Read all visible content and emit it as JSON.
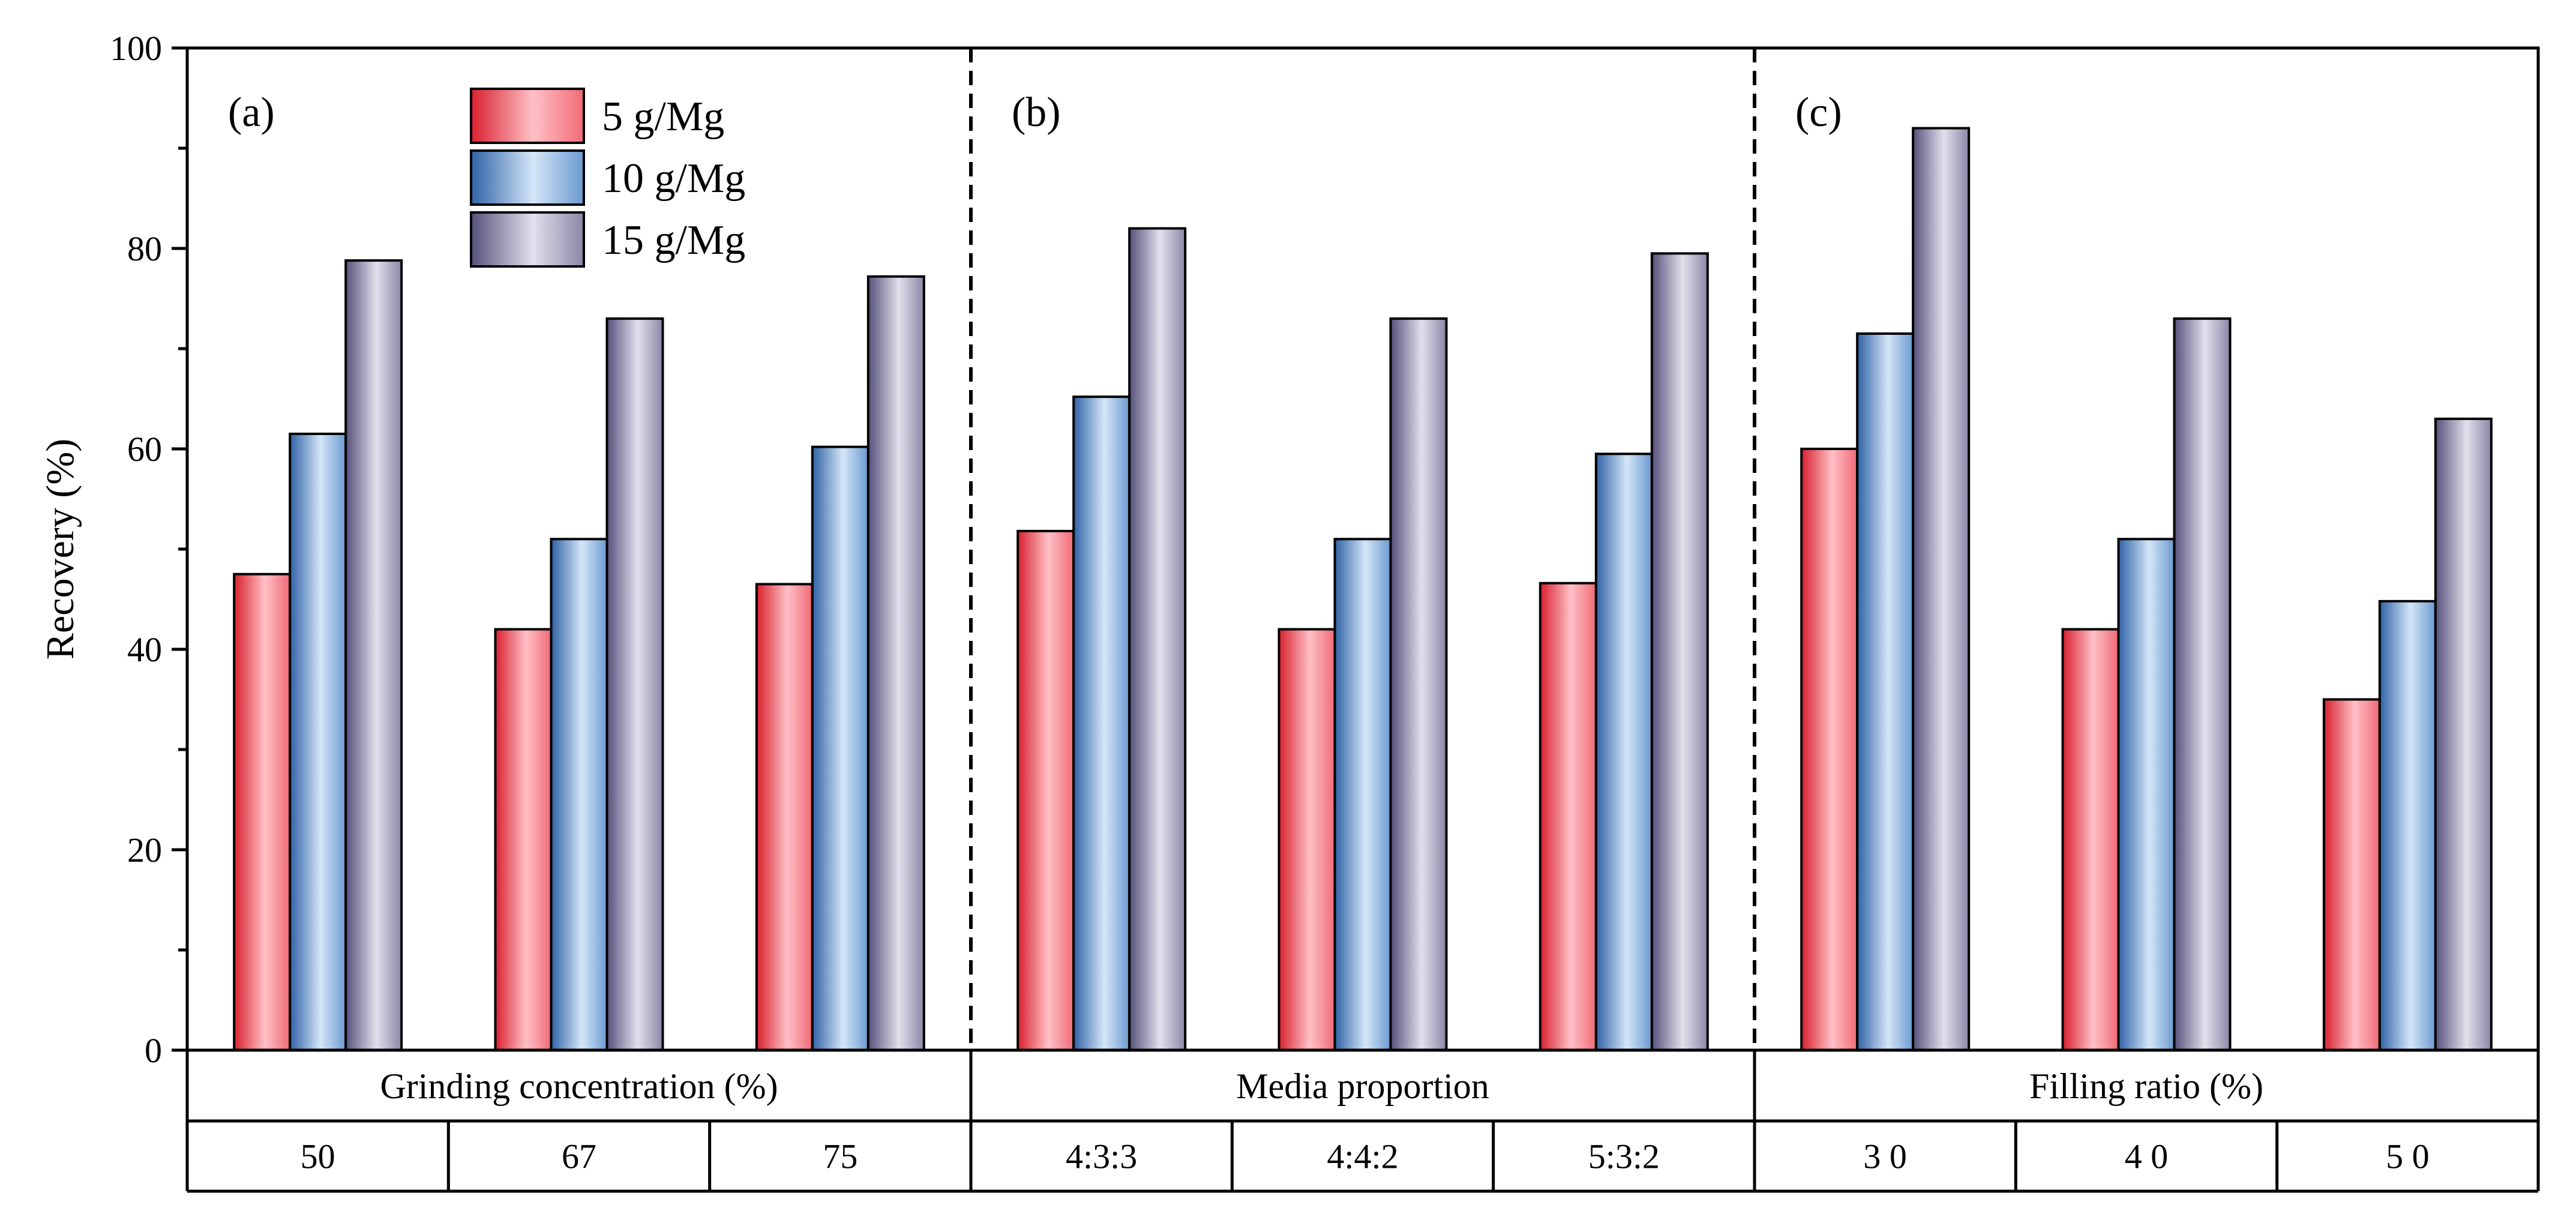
{
  "chart_data": {
    "type": "bar",
    "ylabel": "Recovery (%)",
    "ylim": [
      0,
      100
    ],
    "yticks": [
      0,
      20,
      40,
      60,
      80,
      100
    ],
    "legend": {
      "placement": "top-left",
      "entries": [
        "5 g/Mg",
        "10 g/Mg",
        "15 g/Mg"
      ]
    },
    "series_colors": [
      "#e0303f",
      "#4a80c0",
      "#6e6890"
    ],
    "groups": [
      {
        "panel_label": "(a)",
        "label": "Grinding concentration (%)",
        "categories": [
          "50",
          "67",
          "75"
        ],
        "series": [
          {
            "name": "5 g/Mg",
            "values": [
              47.5,
              42,
              46.5
            ]
          },
          {
            "name": "10 g/Mg",
            "values": [
              61.5,
              51,
              60.2
            ]
          },
          {
            "name": "15 g/Mg",
            "values": [
              78.8,
              73,
              77.2
            ]
          }
        ]
      },
      {
        "panel_label": "(b)",
        "label": "Media proportion",
        "categories": [
          "4:3:3",
          "4:4:2",
          "5:3:2"
        ],
        "series": [
          {
            "name": "5 g/Mg",
            "values": [
              51.8,
              42,
              46.6
            ]
          },
          {
            "name": "10 g/Mg",
            "values": [
              65.2,
              51,
              59.5
            ]
          },
          {
            "name": "15 g/Mg",
            "values": [
              82,
              73,
              79.5
            ]
          }
        ]
      },
      {
        "panel_label": "(c)",
        "label": "Filling ratio (%)",
        "categories": [
          "3 0",
          "4 0",
          "5 0"
        ],
        "series": [
          {
            "name": "5 g/Mg",
            "values": [
              60,
              42,
              35
            ]
          },
          {
            "name": "10 g/Mg",
            "values": [
              71.5,
              51,
              44.8
            ]
          },
          {
            "name": "15 g/Mg",
            "values": [
              92,
              73,
              63
            ]
          }
        ]
      }
    ]
  }
}
